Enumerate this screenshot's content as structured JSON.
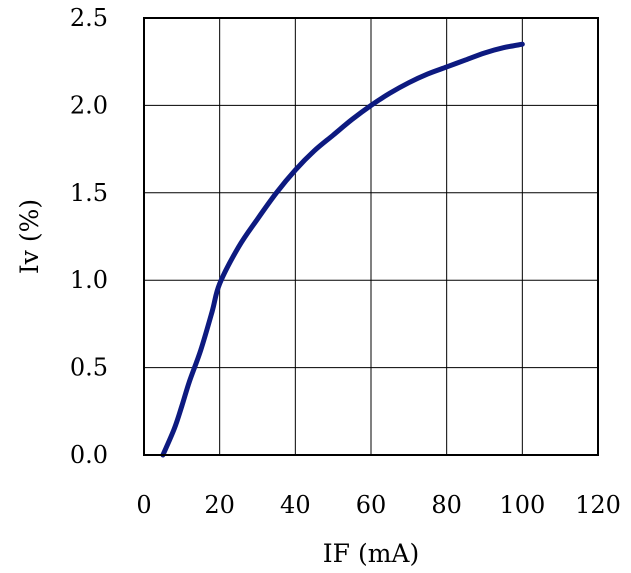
{
  "chart_data": {
    "type": "line",
    "title": "",
    "xlabel": "IF (mA)",
    "ylabel": "Iv (%)",
    "xlim": [
      0,
      120
    ],
    "ylim": [
      0,
      2.5
    ],
    "xticks": [
      0,
      20,
      40,
      60,
      80,
      100,
      120
    ],
    "yticks": [
      0.0,
      0.5,
      1.0,
      1.5,
      2.0,
      2.5
    ],
    "xtick_labels": [
      "0",
      "20",
      "40",
      "60",
      "80",
      "100",
      "120"
    ],
    "ytick_labels": [
      "0.0",
      "0.5",
      "1.0",
      "1.5",
      "2.0",
      "2.5"
    ],
    "grid": true,
    "legend": "none",
    "series": [
      {
        "color": "#0d1a80",
        "x": [
          5,
          8,
          10,
          12,
          15,
          18,
          20,
          25,
          30,
          35,
          40,
          45,
          50,
          55,
          60,
          65,
          70,
          75,
          80,
          85,
          90,
          95,
          100
        ],
        "y": [
          0.0,
          0.15,
          0.28,
          0.42,
          0.6,
          0.82,
          0.98,
          1.19,
          1.35,
          1.5,
          1.63,
          1.74,
          1.83,
          1.92,
          2.0,
          2.07,
          2.13,
          2.18,
          2.22,
          2.26,
          2.3,
          2.33,
          2.35
        ]
      }
    ]
  }
}
